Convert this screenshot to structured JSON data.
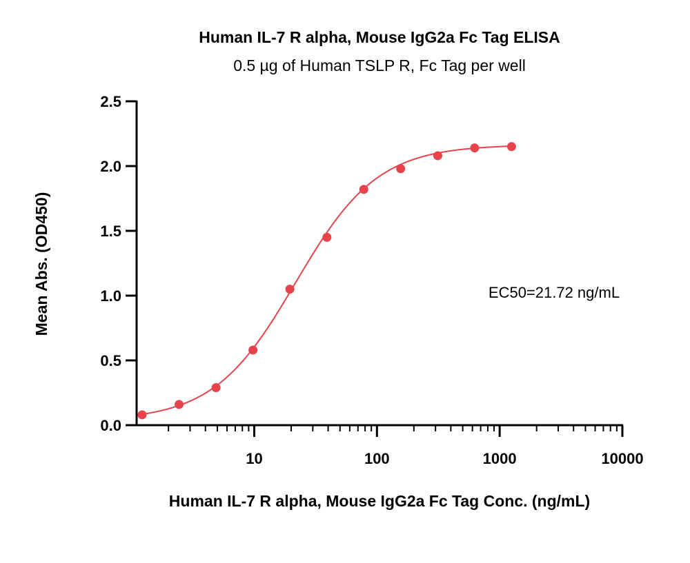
{
  "chart_data": {
    "type": "scatter",
    "title": "Human IL-7 R alpha, Mouse IgG2a Fc Tag ELISA",
    "subtitle": "0.5 µg of Human TSLP R, Fc Tag per well",
    "xlabel": "Human IL-7 R alpha, Mouse IgG2a Fc Tag Conc. (ng/mL)",
    "ylabel": "Mean Abs. (OD450)",
    "x_scale": "log",
    "xlim": [
      1.1,
      10000
    ],
    "ylim": [
      0,
      2.5
    ],
    "x_ticks": [
      10,
      100,
      1000,
      10000
    ],
    "x_tick_labels": [
      "10",
      "100",
      "1000",
      "10000"
    ],
    "y_ticks": [
      0,
      0.5,
      1,
      1.5,
      2,
      2.5
    ],
    "y_tick_labels": [
      "0.0",
      "0.5",
      "1.0",
      "1.5",
      "2.0",
      "2.5"
    ],
    "grid": false,
    "series": [
      {
        "x": [
          1.22,
          2.44,
          4.88,
          9.77,
          19.5,
          39.1,
          78.1,
          156,
          313,
          625,
          1250
        ],
        "y": [
          0.08,
          0.16,
          0.29,
          0.58,
          1.05,
          1.45,
          1.82,
          1.98,
          2.08,
          2.14,
          2.15
        ],
        "color": "#e8424a",
        "fit": "4PL sigmoid curve"
      }
    ],
    "annotations": [
      {
        "text": "EC50=21.72 ng/mL"
      }
    ]
  }
}
